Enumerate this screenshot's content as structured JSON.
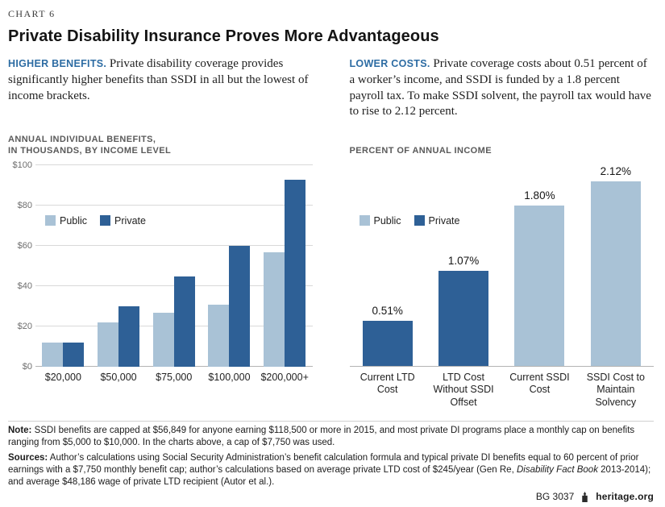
{
  "page": {
    "kicker": "CHART 6",
    "title": "Private Disability Insurance Proves More Advantageous"
  },
  "intro": {
    "left": {
      "lead": "HIGHER BENEFITS.",
      "text": "Private disability coverage provides significantly higher benefits than SSDI in all but the lowest of income brackets."
    },
    "right": {
      "lead": "LOWER COSTS.",
      "text": "Private coverage costs about 0.51 percent of a worker’s income, and SSDI is funded by a 1.8 percent payroll tax. To make SSDI solvent, the payroll tax would have to rise to 2.12 percent."
    }
  },
  "colors": {
    "public": "#a9c2d6",
    "private": "#2e6096",
    "accent_text": "#2d6ca3",
    "gridline": "#d9d9d9"
  },
  "chart_data": [
    {
      "type": "bar",
      "title": "Annual Individual Benefits, in Thousands, by Income Level",
      "title_lines": [
        "ANNUAL INDIVIDUAL BENEFITS,",
        "IN THOUSANDS, BY INCOME LEVEL"
      ],
      "categories": [
        "$20,000",
        "$50,000",
        "$75,000",
        "$100,000",
        "$200,000+"
      ],
      "series": [
        {
          "name": "Public",
          "values": [
            12,
            22,
            27,
            31,
            57
          ]
        },
        {
          "name": "Private",
          "values": [
            12,
            30,
            45,
            60,
            93
          ]
        }
      ],
      "ylim": [
        0,
        100
      ],
      "yticks": [
        "$0",
        "$20",
        "$40",
        "$60",
        "$80",
        "$100"
      ],
      "grid": true,
      "legend_position": "inside-upper-left"
    },
    {
      "type": "bar",
      "title": "PERCENT OF ANNUAL INCOME",
      "categories": [
        "Current LTD Cost",
        "LTD Cost Without SSDI Offset",
        "Current SSDI Cost",
        "SSDI Cost to Maintain Solvency"
      ],
      "values": [
        0.51,
        1.07,
        1.8,
        2.12
      ],
      "value_labels": [
        "0.51%",
        "1.07%",
        "1.80%",
        "2.12%"
      ],
      "bar_series": [
        "Private",
        "Private",
        "Public",
        "Public"
      ],
      "legend": [
        "Public",
        "Private"
      ],
      "ylim": [
        0,
        2.25
      ],
      "grid": false,
      "legend_position": "inside-middle-left"
    }
  ],
  "footer": {
    "note_label": "Note:",
    "note_text": "SSDI benefits are capped at $56,849 for anyone earning $118,500 or more in 2015, and most private DI programs place a monthly cap on benefits ranging from $5,000 to $10,000. In the charts above, a cap of $7,750 was used.",
    "sources_label": "Sources:",
    "sources_before": "Author’s calculations using Social Security Administration’s benefit calculation formula and typical private DI benefits equal to 60 percent of prior earnings with a $7,750 monthly benefit cap; author’s calculations based on average private LTD cost of $245/year (Gen Re, ",
    "sources_italic": "Disability Fact Book",
    "sources_after": " 2013-2014); and average $48,186 wage of private LTD recipient (Autor et al.).",
    "credit": "BG 3037",
    "site": "heritage.org"
  }
}
